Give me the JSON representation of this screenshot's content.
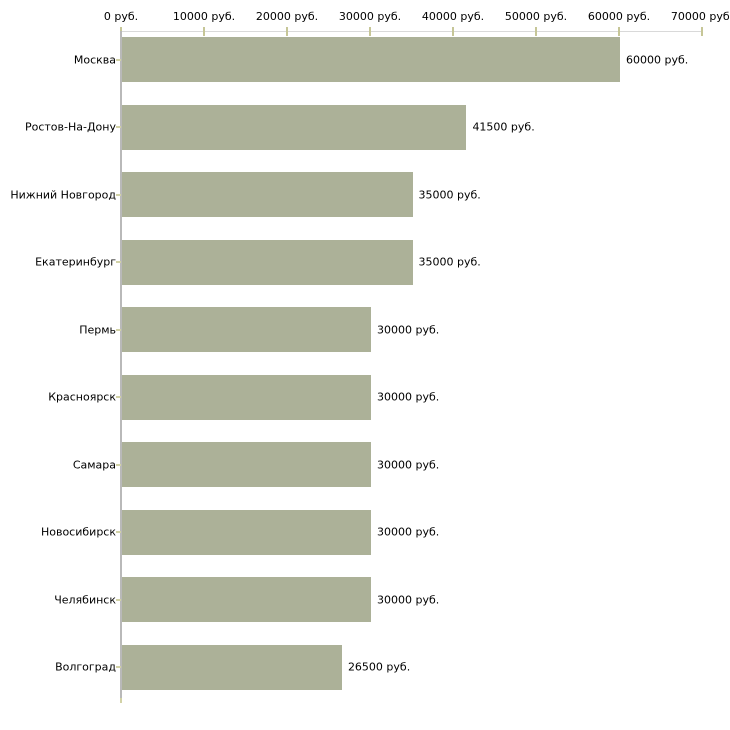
{
  "chart_data": {
    "type": "bar",
    "orientation": "horizontal",
    "title": "",
    "categories": [
      "Москва",
      "Ростов-На-Дону",
      "Нижний Новгород",
      "Екатеринбург",
      "Пермь",
      "Красноярск",
      "Самара",
      "Новосибирск",
      "Челябинск",
      "Волгоград"
    ],
    "values": [
      60000,
      41500,
      35000,
      35000,
      30000,
      30000,
      30000,
      30000,
      30000,
      26500
    ],
    "value_labels": [
      "60000 руб.",
      "41500 руб.",
      "35000 руб.",
      "35000 руб.",
      "30000 руб.",
      "30000 руб.",
      "30000 руб.",
      "30000 руб.",
      "30000 руб.",
      "26500 руб."
    ],
    "x_tick_values": [
      0,
      10000,
      20000,
      30000,
      40000,
      50000,
      60000,
      70000
    ],
    "x_tick_labels": [
      "0 руб.",
      "10000 руб.",
      "20000 руб.",
      "30000 руб.",
      "40000 руб.",
      "50000 руб.",
      "60000 руб.",
      "70000 руб."
    ],
    "xlim": [
      0,
      70000
    ],
    "unit": "руб.",
    "xlabel": "",
    "ylabel": "",
    "legend": null,
    "grid": false,
    "colors": {
      "bar": "#acb198",
      "x_axis_line": "#d9d9d9",
      "x_tick_mark": "#c6c697",
      "y_axis_line": "#b9b9b9",
      "category_tick": "#d2d2a6",
      "text": "#000000",
      "background": "#ffffff"
    }
  }
}
